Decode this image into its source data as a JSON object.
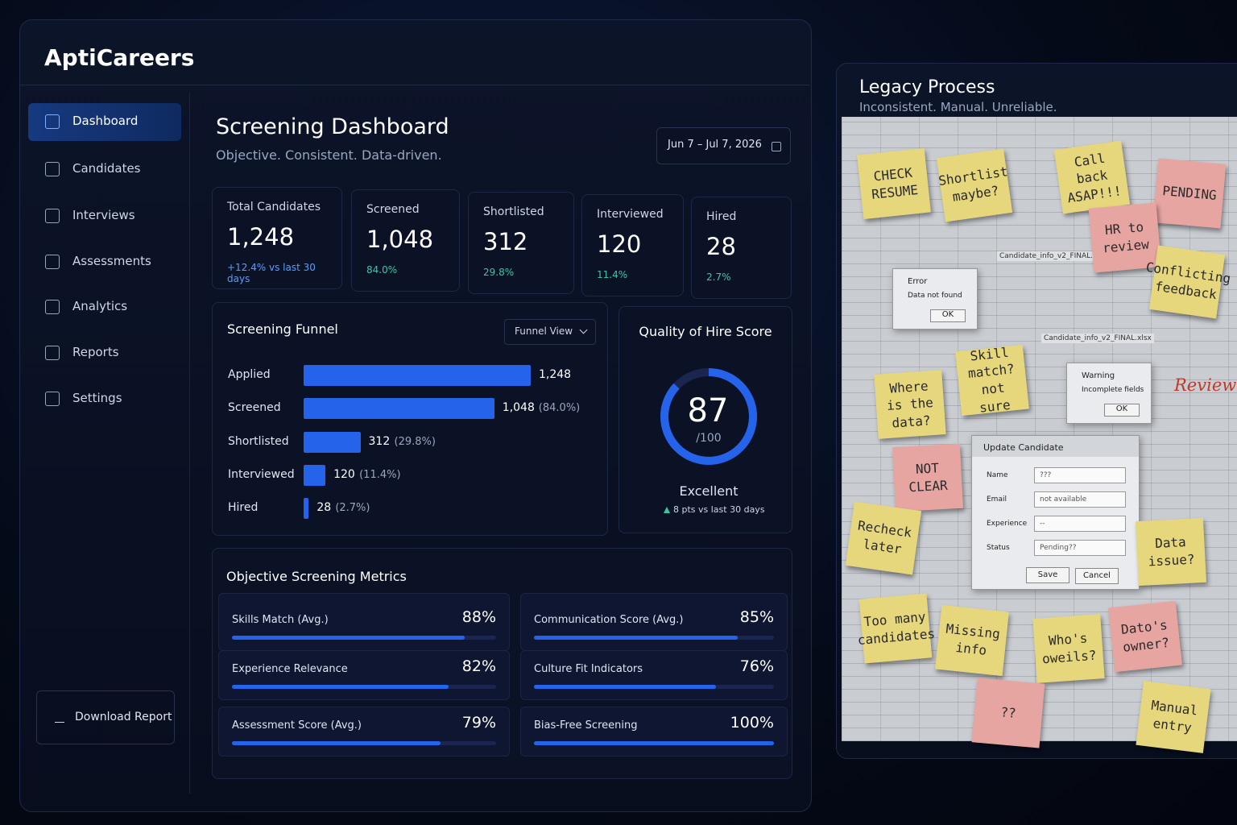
{
  "brand": "AptiCareers",
  "nav": [
    "Dashboard",
    "Candidates",
    "Interviews",
    "Assessments",
    "Analytics",
    "Reports",
    "Settings"
  ],
  "download": "Download Report",
  "header": {
    "title": "Screening Dashboard",
    "subtitle": "Objective. Consistent. Data-driven.",
    "date_range": "Jun 7 – Jul 7, 2026"
  },
  "kpis": [
    {
      "label": "Total Candidates",
      "value": "1,248",
      "note": "+12.4% vs last 30 days"
    },
    {
      "label": "Screened",
      "value": "1,048",
      "note": "84.0%"
    },
    {
      "label": "Shortlisted",
      "value": "312",
      "note": "29.8%"
    },
    {
      "label": "Interviewed",
      "value": "120",
      "note": "11.4%"
    },
    {
      "label": "Hired",
      "value": "28",
      "note": "2.7%"
    }
  ],
  "funnel": {
    "title": "Screening Funnel",
    "view": "Funnel View",
    "color": "#2563eb",
    "rows": [
      {
        "label": "Applied",
        "value": 1248,
        "value_label": "1,248"
      },
      {
        "label": "Screened",
        "value": 1048,
        "value_label": "1,048",
        "share": "(84.0%)"
      },
      {
        "label": "Shortlisted",
        "value": 312,
        "value_label": "312",
        "share": "(29.8%)"
      },
      {
        "label": "Interviewed",
        "value": 120,
        "value_label": "120",
        "share": "(11.4%)"
      },
      {
        "label": "Hired",
        "value": 28,
        "value_label": "28",
        "share": "(2.7%)"
      }
    ]
  },
  "quality": {
    "title": "Quality of Hire Score",
    "score": 87,
    "out_of": {
      "value": 100,
      "label": "/100"
    },
    "rating": "Excellent",
    "change": "8 pts vs last 30 days",
    "color": "#2563eb"
  },
  "metrics": {
    "title": "Objective Screening Metrics",
    "xlim": [
      0,
      100
    ],
    "color": "#2563eb",
    "items": [
      {
        "name": "Skills Match (Avg.)",
        "value": 88,
        "value_label": "88%"
      },
      {
        "name": "Communication Score (Avg.)",
        "value": 85,
        "value_label": "85%"
      },
      {
        "name": "Experience Relevance",
        "value": 82,
        "value_label": "82%"
      },
      {
        "name": "Culture Fit Indicators",
        "value": 76,
        "value_label": "76%"
      },
      {
        "name": "Assessment Score (Avg.)",
        "value": 79,
        "value_label": "79%"
      },
      {
        "name": "Bias-Free Screening",
        "value": 100,
        "value_label": "100%"
      }
    ]
  },
  "legacy": {
    "title": "Legacy Process",
    "subtitle": "Inconsistent. Manual. Unreliable.",
    "files": [
      "Candidate_info_v2_FINAL.xlsx",
      "Candidate_info_v2_FINAL.xlsx"
    ],
    "review": "Review",
    "notes": [
      {
        "text": "CHECK RESUME",
        "color": "#e6d67c"
      },
      {
        "text": "Shortlist maybe?",
        "color": "#e6d67c"
      },
      {
        "text": "Call back ASAP!!!",
        "color": "#e6d67c"
      },
      {
        "text": "PENDING",
        "color": "#e7a5a2"
      },
      {
        "text": "HR to review",
        "color": "#e7a5a2"
      },
      {
        "text": "Conflicting feedback",
        "color": "#e6d67c"
      },
      {
        "text": "Where is the data?",
        "color": "#e6d67c"
      },
      {
        "text": "Skill match? not sure",
        "color": "#e6d67c"
      },
      {
        "text": "NOT CLEAR",
        "color": "#e7a5a2"
      },
      {
        "text": "Recheck later",
        "color": "#e6d67c"
      },
      {
        "text": "Data issue?",
        "color": "#e6d67c"
      },
      {
        "text": "Too many candidates",
        "color": "#e6d67c"
      },
      {
        "text": "Missing info",
        "color": "#e6d67c"
      },
      {
        "text": "Who's oweils?",
        "color": "#e6d67c"
      },
      {
        "text": "Dato's owner?",
        "color": "#e7a5a2"
      },
      {
        "text": "??",
        "color": "#e7a5a2"
      },
      {
        "text": "Manual entry",
        "color": "#e6d67c"
      }
    ],
    "error": {
      "title": "Error",
      "message": "Data not found",
      "button": "OK"
    },
    "warning": {
      "title": "Warning",
      "message": "Incomplete fields",
      "button": "OK"
    },
    "form": {
      "title": "Update Candidate",
      "fields": [
        {
          "label": "Name",
          "value": "???"
        },
        {
          "label": "Email",
          "value": "not available"
        },
        {
          "label": "Experience",
          "value": "--"
        },
        {
          "label": "Status",
          "value": "Pending??"
        }
      ],
      "save": "Save",
      "cancel": "Cancel"
    }
  }
}
